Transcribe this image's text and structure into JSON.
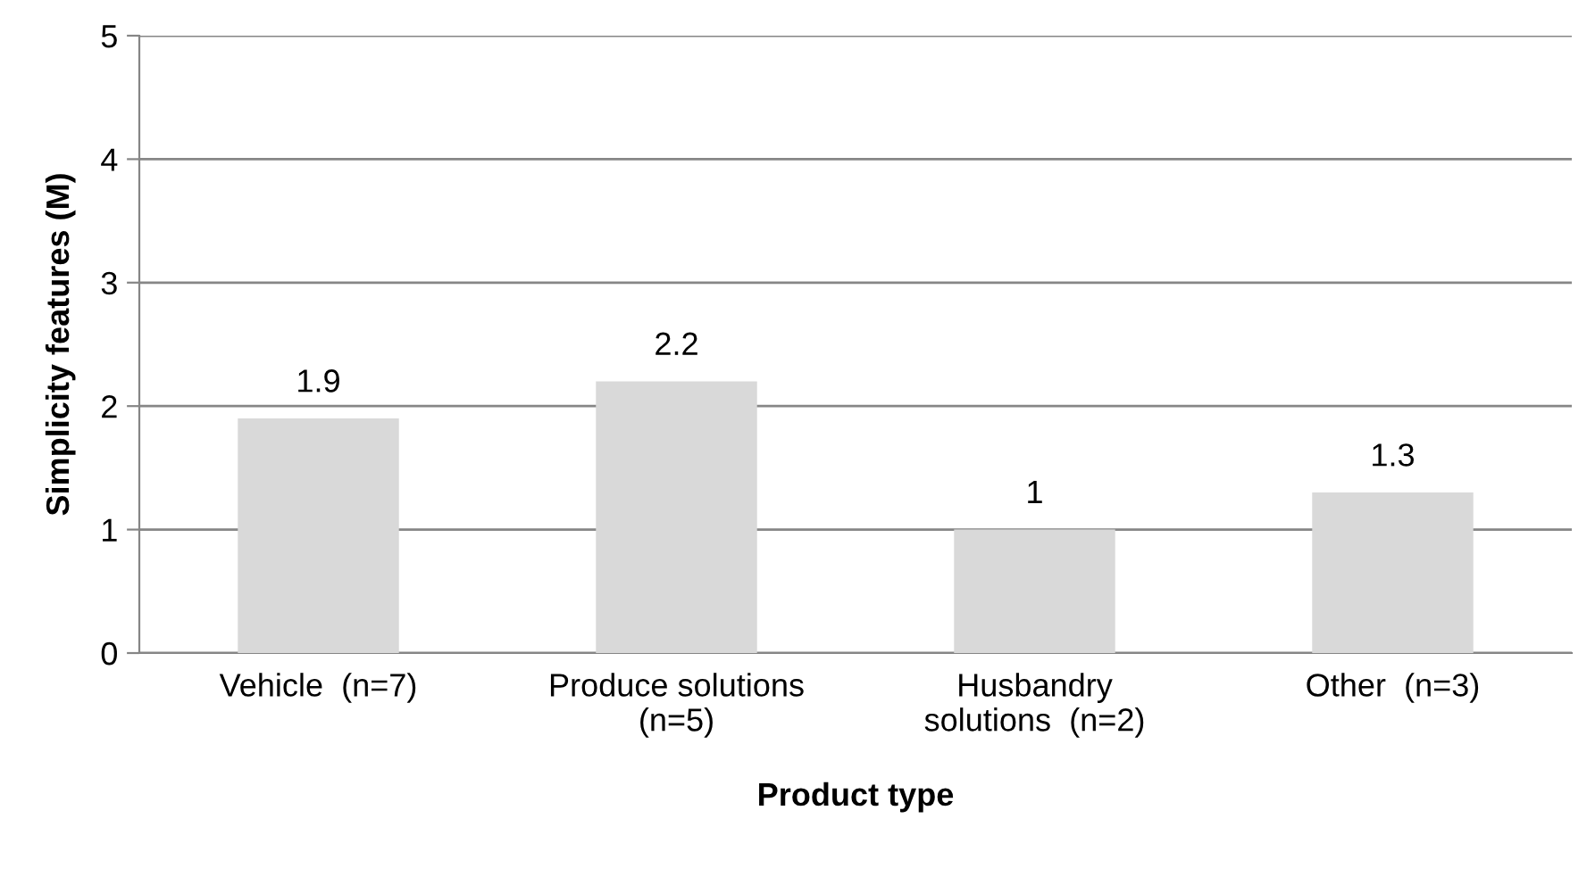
{
  "chart_data": {
    "type": "bar",
    "categories": [
      "Vehicle  (n=7)",
      "Produce solutions\n(n=5)",
      "Husbandry\nsolutions  (n=2)",
      "Other  (n=3)"
    ],
    "values": [
      1.9,
      2.2,
      1,
      1.3
    ],
    "color": "#d9d9d9",
    "xlabel": "Product type",
    "ylabel": "Simplicity features (M)",
    "ylim": [
      0,
      5
    ],
    "yticks": [
      0,
      1,
      2,
      3,
      4,
      5
    ],
    "grid": "y",
    "data_labels": true,
    "legend": false
  }
}
